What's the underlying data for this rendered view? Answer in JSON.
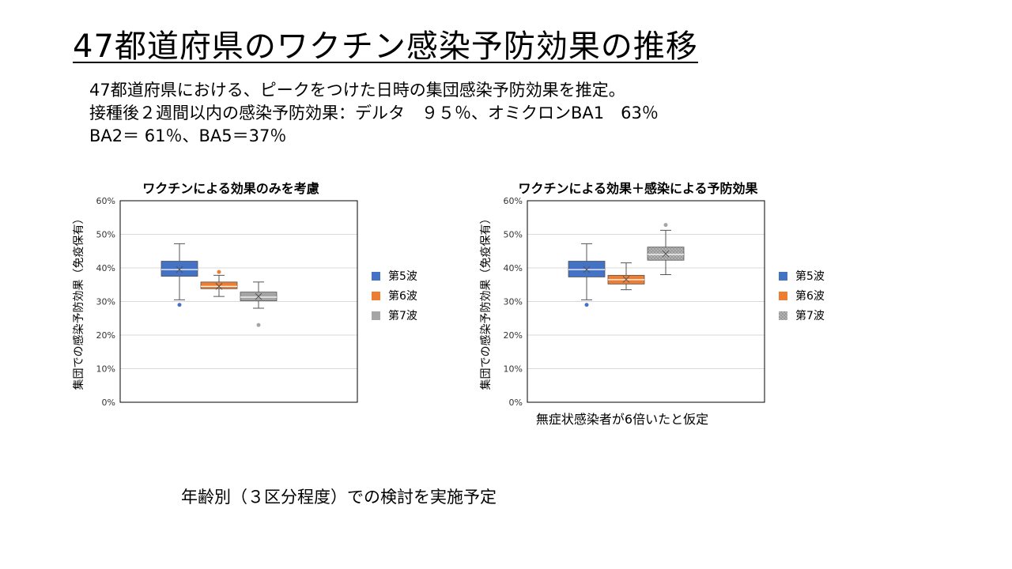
{
  "slide": {
    "title": "47都道府県のワクチン感染予防効果の推移",
    "intro_lines": [
      "47都道府県における、ピークをつけた日時の集団感染予防効果を推定。",
      "接種後２週間以内の感染予防効果：デルタ　９５％、オミクロンBA1　63％",
      "BA2＝ 61％、BA5＝37％"
    ],
    "footer": "年齢別（３区分程度）での検討を実施予定"
  },
  "colors": {
    "wave5": "#4472C4",
    "wave6": "#ED7D31",
    "wave7": "#A5A5A5",
    "gridline": "#D9D9D9",
    "plot_border": "#000000"
  },
  "chart_data": [
    {
      "type": "box",
      "title": "ワクチンによる効果のみを考慮",
      "ylabel": "集団での感染予防効果（免疫保有）",
      "note": "",
      "ylim": [
        0,
        60
      ],
      "yticks": [
        "0%",
        "10%",
        "20%",
        "30%",
        "40%",
        "50%",
        "60%"
      ],
      "grid": true,
      "legend_position": "right",
      "series": [
        {
          "name": "第5波",
          "color": "#4472C4",
          "pattern": "solid",
          "min": 30.5,
          "q1": 37.5,
          "median": 39.5,
          "q3": 42,
          "max": 47.2,
          "mean": 39.5,
          "outliers": [
            29
          ]
        },
        {
          "name": "第6波",
          "color": "#ED7D31",
          "pattern": "solid",
          "min": 31.5,
          "q1": 33.8,
          "median": 34.5,
          "q3": 35.8,
          "max": 37.8,
          "mean": 34.5,
          "outliers": [
            38.8
          ]
        },
        {
          "name": "第7波",
          "color": "#A5A5A5",
          "pattern": "solid",
          "min": 28,
          "q1": 30.2,
          "median": 31.3,
          "q3": 32.8,
          "max": 35.8,
          "mean": 31.5,
          "outliers": [
            23
          ]
        }
      ]
    },
    {
      "type": "box",
      "title": "ワクチンによる効果＋感染による予防効果",
      "ylabel": "集団での感染予防効果（免疫保有）",
      "note": "無症状感染者が6倍いたと仮定",
      "ylim": [
        0,
        60
      ],
      "yticks": [
        "0%",
        "10%",
        "20%",
        "30%",
        "40%",
        "50%",
        "60%"
      ],
      "grid": true,
      "legend_position": "right",
      "series": [
        {
          "name": "第5波",
          "color": "#4472C4",
          "pattern": "solid",
          "min": 30.5,
          "q1": 37.3,
          "median": 39.5,
          "q3": 42,
          "max": 47.2,
          "mean": 39.5,
          "outliers": [
            29
          ]
        },
        {
          "name": "第6波",
          "color": "#ED7D31",
          "pattern": "solid",
          "min": 33.5,
          "q1": 35.2,
          "median": 36.5,
          "q3": 37.8,
          "max": 41.5,
          "mean": 36.6,
          "outliers": []
        },
        {
          "name": "第7波",
          "color": "#A5A5A5",
          "pattern": "hatched",
          "min": 38,
          "q1": 42.3,
          "median": 44,
          "q3": 46.2,
          "max": 51.2,
          "mean": 44.2,
          "outliers": [
            52.8
          ]
        }
      ]
    }
  ]
}
